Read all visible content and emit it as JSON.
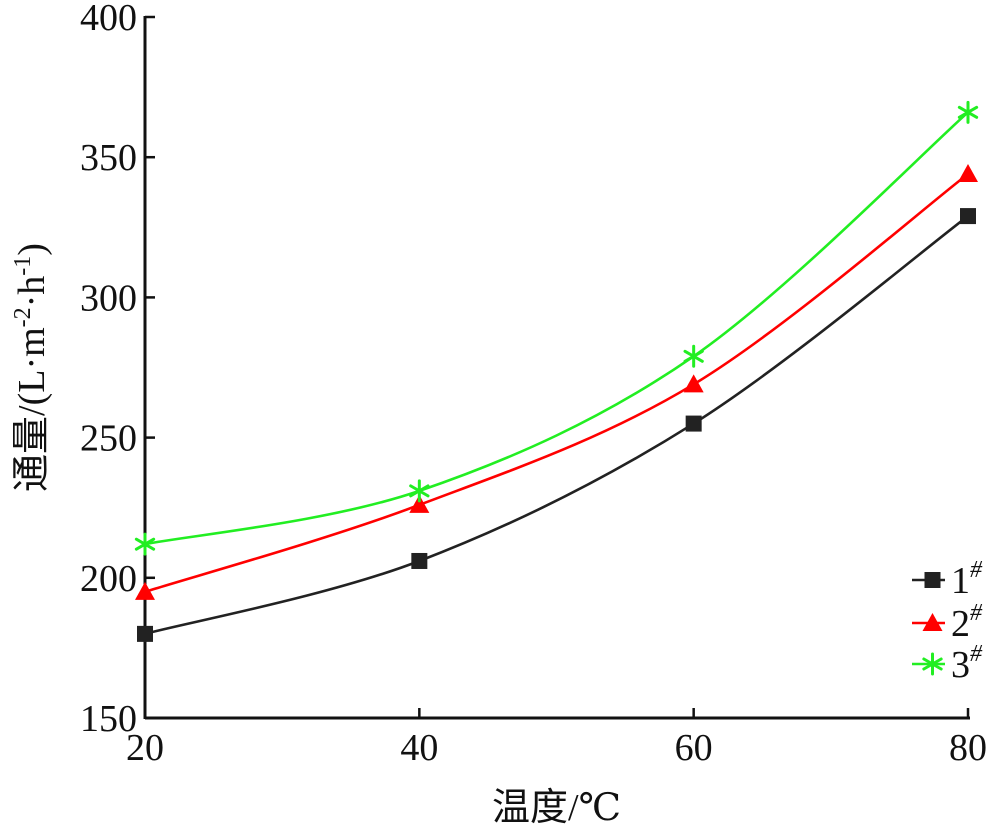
{
  "chart_data": {
    "type": "line",
    "xlabel": "温度/℃",
    "ylabel_main": "通量/(L·m",
    "ylabel_sup1": "-2",
    "ylabel_mid": "·h",
    "ylabel_sup2": "-1",
    "ylabel_end": ")",
    "x": [
      20,
      40,
      60,
      80
    ],
    "xlim": [
      20,
      80
    ],
    "ylim": [
      150,
      400
    ],
    "x_ticks": [
      20,
      40,
      60,
      80
    ],
    "y_ticks": [
      150,
      200,
      250,
      300,
      350,
      400
    ],
    "grid": false,
    "legend_position": "bottom-right",
    "series": [
      {
        "name": "1",
        "name_sup": "#",
        "values": [
          180,
          206,
          255,
          329
        ],
        "color": "#222222",
        "marker": "square"
      },
      {
        "name": "2",
        "name_sup": "#",
        "values": [
          195,
          226,
          269,
          344
        ],
        "color": "#ff0000",
        "marker": "triangle"
      },
      {
        "name": "3",
        "name_sup": "#",
        "values": [
          212,
          231,
          279,
          366
        ],
        "color": "#22ee22",
        "marker": "asterisk"
      }
    ]
  }
}
